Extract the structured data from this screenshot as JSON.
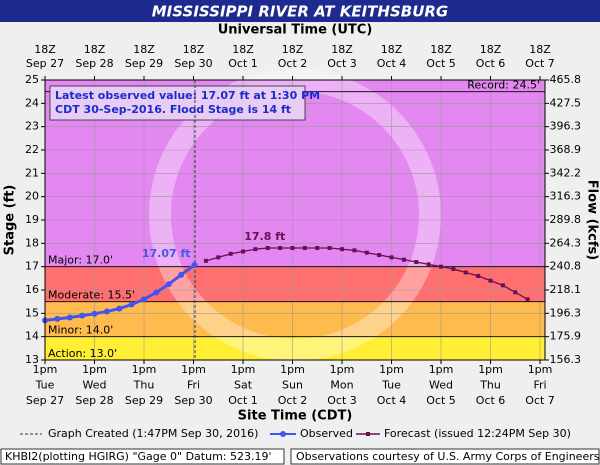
{
  "chart_data": {
    "type": "hydrograph",
    "title": "MISSISSIPPI RIVER AT KEITHSBURG",
    "top_axis_label": "Universal Time (UTC)",
    "x_label": "Site Time (CDT)",
    "y_label": "Stage (ft)",
    "y2_label": "Flow (kcfs)",
    "xlim": [
      0,
      10.1
    ],
    "xticks": [
      {
        "value": 0,
        "label": [
          "1pm",
          "Tue",
          "Sep 27"
        ]
      },
      {
        "value": 1,
        "label": [
          "1pm",
          "Wed",
          "Sep 28"
        ]
      },
      {
        "value": 2,
        "label": [
          "1pm",
          "Thu",
          "Sep 29"
        ]
      },
      {
        "value": 3,
        "label": [
          "1pm",
          "Fri",
          "Sep 30"
        ]
      },
      {
        "value": 4,
        "label": [
          "1pm",
          "Sat",
          "Oct 1"
        ]
      },
      {
        "value": 5,
        "label": [
          "1pm",
          "Sun",
          "Oct 2"
        ]
      },
      {
        "value": 6,
        "label": [
          "1pm",
          "Mon",
          "Oct 3"
        ]
      },
      {
        "value": 7,
        "label": [
          "1pm",
          "Tue",
          "Oct 4"
        ]
      },
      {
        "value": 8,
        "label": [
          "1pm",
          "Wed",
          "Oct 5"
        ]
      },
      {
        "value": 9,
        "label": [
          "1pm",
          "Thu",
          "Oct 6"
        ]
      },
      {
        "value": 10,
        "label": [
          "1pm",
          "Fri",
          "Oct 7"
        ]
      }
    ],
    "x2ticks": [
      {
        "value": 0,
        "label": [
          "18Z",
          "Sep 27"
        ]
      },
      {
        "value": 1,
        "label": [
          "18Z",
          "Sep 28"
        ]
      },
      {
        "value": 2,
        "label": [
          "18Z",
          "Sep 29"
        ]
      },
      {
        "value": 3,
        "label": [
          "18Z",
          "Sep 30"
        ]
      },
      {
        "value": 4,
        "label": [
          "18Z",
          "Oct 1"
        ]
      },
      {
        "value": 5,
        "label": [
          "18Z",
          "Oct 2"
        ]
      },
      {
        "value": 6,
        "label": [
          "18Z",
          "Oct 3"
        ]
      },
      {
        "value": 7,
        "label": [
          "18Z",
          "Oct 4"
        ]
      },
      {
        "value": 8,
        "label": [
          "18Z",
          "Oct 5"
        ]
      },
      {
        "value": 9,
        "label": [
          "18Z",
          "Oct 6"
        ]
      },
      {
        "value": 10,
        "label": [
          "18Z",
          "Oct 7"
        ]
      }
    ],
    "ylim": [
      13,
      25
    ],
    "yticks": [
      13,
      14,
      15,
      16,
      17,
      18,
      19,
      20,
      21,
      22,
      23,
      24,
      25
    ],
    "y2lim": [
      156.3,
      465.8
    ],
    "y2ticks": [
      156.3,
      175.9,
      196.3,
      218.1,
      240.8,
      264.3,
      289.8,
      316.3,
      342.2,
      368.9,
      396.3,
      427.5,
      465.8
    ],
    "grid": true,
    "flood_categories": [
      {
        "label": "Action: 13.0'",
        "value": 13,
        "color": "#ffee33"
      },
      {
        "label": "Minor: 14.0'",
        "value": 14,
        "color": "#ffbb4d"
      },
      {
        "label": "Moderate: 15.5'",
        "value": 15.5,
        "color": "#ff6f6f"
      },
      {
        "label": "Major: 17.0'",
        "value": 17,
        "color": "#e388f0"
      }
    ],
    "record": {
      "label": "Record: 24.5'",
      "value": 24.5
    },
    "info_box": [
      "Latest observed value: 17.07 ft at 1:30 PM",
      "CDT 30-Sep-2016.  Flood Stage is 14 ft"
    ],
    "observed_label": "17.07 ft",
    "peak_label": "17.8 ft",
    "graph_created": 3.03,
    "series": [
      {
        "name": "Observed",
        "color": "#4455ee",
        "x": [
          0,
          0.25,
          0.5,
          0.75,
          1,
          1.25,
          1.5,
          1.75,
          2,
          2.25,
          2.5,
          2.75,
          3.02
        ],
        "values": [
          14.7,
          14.76,
          14.82,
          14.9,
          14.98,
          15.08,
          15.2,
          15.38,
          15.6,
          15.9,
          16.25,
          16.65,
          17.07
        ]
      },
      {
        "name": "Forecast (issued 12:24PM Sep 30)",
        "color": "#661155",
        "x": [
          3.25,
          3.5,
          3.75,
          4,
          4.25,
          4.5,
          4.75,
          5,
          5.25,
          5.5,
          5.75,
          6,
          6.25,
          6.5,
          6.75,
          7,
          7.25,
          7.5,
          7.75,
          8,
          8.25,
          8.5,
          8.75,
          9,
          9.25,
          9.5,
          9.75
        ],
        "values": [
          17.25,
          17.4,
          17.55,
          17.65,
          17.75,
          17.8,
          17.8,
          17.8,
          17.8,
          17.8,
          17.8,
          17.75,
          17.7,
          17.6,
          17.5,
          17.4,
          17.3,
          17.2,
          17.1,
          17.0,
          16.9,
          16.75,
          16.6,
          16.4,
          16.2,
          15.9,
          15.6
        ]
      }
    ],
    "legend_created": "Graph Created (1:47PM Sep 30, 2016)",
    "footer_left": "KHBI2(plotting HGIRG) \"Gage 0\" Datum: 523.19'",
    "footer_right": "Observations courtesy of U.S. Army Corps of Engineers"
  }
}
